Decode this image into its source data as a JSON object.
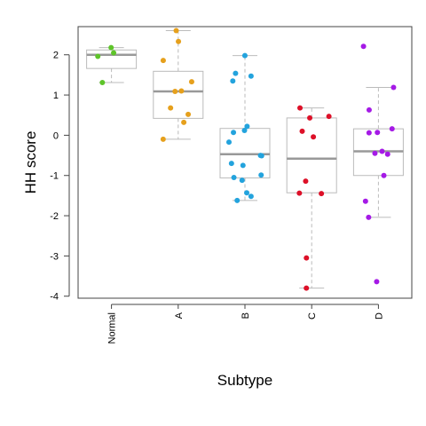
{
  "chart_data": {
    "type": "boxplot",
    "xlabel": "Subtype",
    "ylabel": "HH score",
    "ylim": [
      -4.05,
      2.7
    ],
    "yticks": [
      -4,
      -3,
      -2,
      -1,
      0,
      1,
      2
    ],
    "grid": false,
    "legend": "none",
    "categories": [
      "Normal",
      "A",
      "B",
      "C",
      "D"
    ],
    "colors": {
      "Normal": "#5ec42a",
      "A": "#e6a01c",
      "B": "#23a3dd",
      "C": "#dd1028",
      "D": "#a51ae6"
    },
    "box_color": "#bbbbbb",
    "median_color": "#999999",
    "boxes": [
      {
        "category": "Normal",
        "whisker_low": 1.31,
        "q1": 1.66,
        "median": 2.0,
        "q3": 2.12,
        "whisker_high": 2.18
      },
      {
        "category": "A",
        "whisker_low": -0.1,
        "q1": 0.42,
        "median": 1.09,
        "q3": 1.59,
        "whisker_high": 2.6
      },
      {
        "category": "B",
        "whisker_low": -1.62,
        "q1": -1.06,
        "median": -0.47,
        "q3": 0.17,
        "whisker_high": 1.98
      },
      {
        "category": "C",
        "whisker_low": -3.8,
        "q1": -1.43,
        "median": -0.58,
        "q3": 0.43,
        "whisker_high": 0.68
      },
      {
        "category": "D",
        "whisker_low": -2.04,
        "q1": -1.0,
        "median": -0.4,
        "q3": 0.16,
        "whisker_high": 1.19
      }
    ],
    "points": {
      "Normal": [
        2.18,
        2.05,
        1.96,
        1.31
      ],
      "A": [
        2.6,
        2.33,
        1.86,
        1.33,
        1.1,
        1.09,
        0.68,
        0.52,
        0.32,
        -0.1
      ],
      "B": [
        1.98,
        1.54,
        1.47,
        1.35,
        0.22,
        0.12,
        0.07,
        -0.17,
        -0.5,
        -0.51,
        -0.7,
        -0.75,
        -0.99,
        -1.05,
        -1.12,
        -1.43,
        -1.52,
        -1.62
      ],
      "C": [
        0.68,
        0.47,
        0.43,
        0.1,
        -0.04,
        -1.14,
        -1.44,
        -1.45,
        -3.05,
        -3.8
      ],
      "D": [
        2.21,
        1.19,
        0.63,
        0.16,
        0.07,
        0.06,
        -0.4,
        -0.45,
        -0.47,
        -1.0,
        -1.64,
        -2.04,
        -3.64
      ]
    }
  }
}
